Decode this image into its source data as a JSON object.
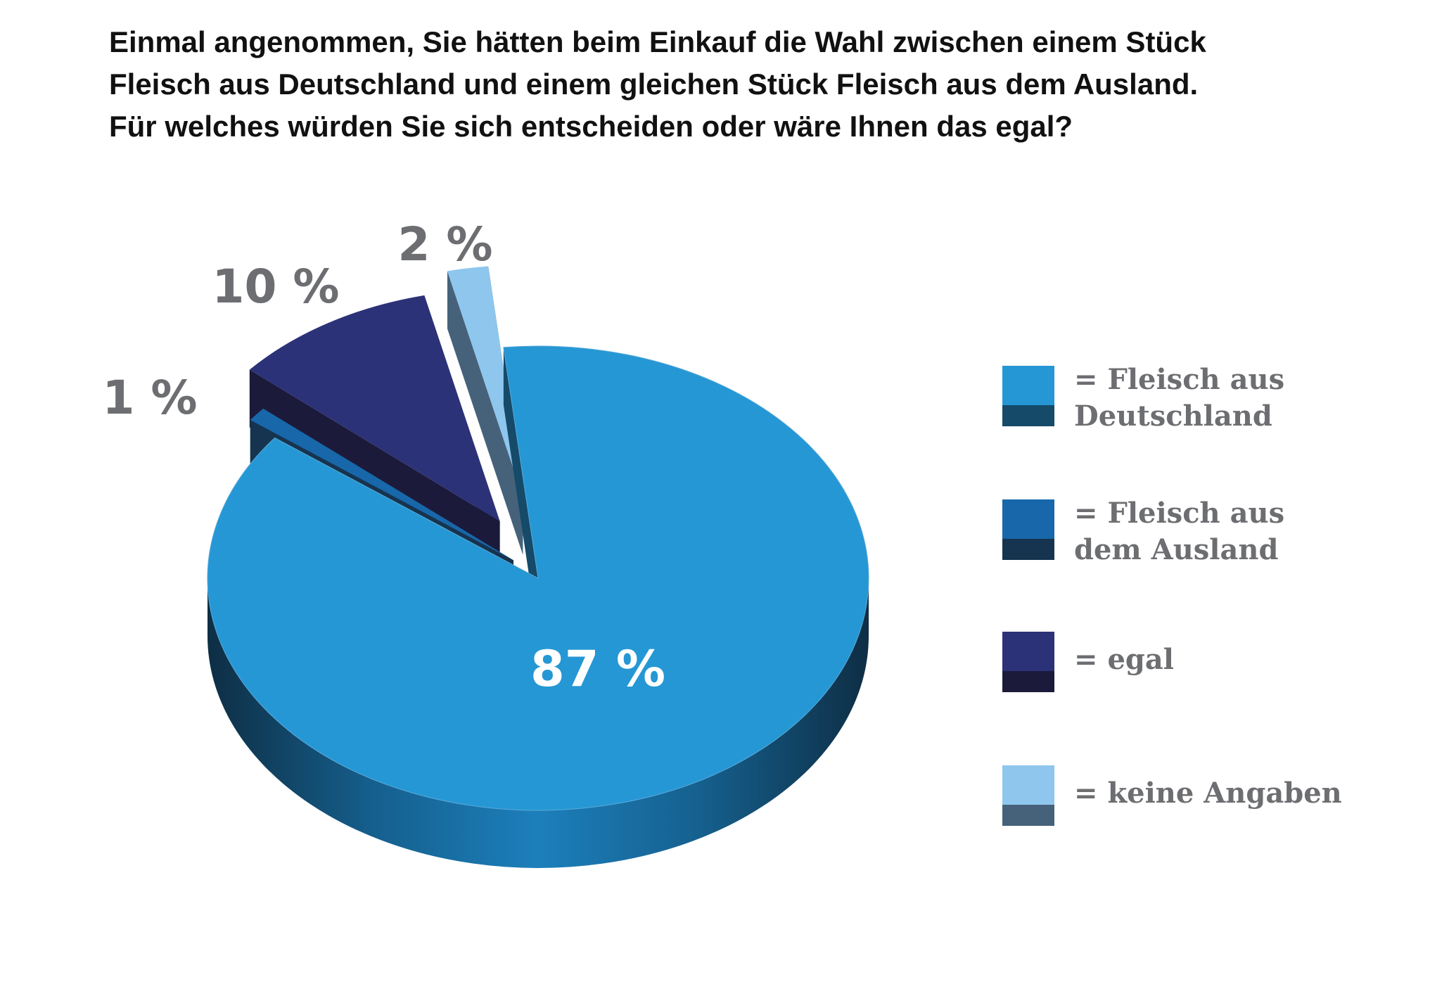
{
  "title_lines": [
    "Einmal angenommen, Sie hätten beim Einkauf die Wahl zwischen einem Stück",
    "Fleisch aus Deutschland und einem gleichen Stück Fleisch aus dem Ausland.",
    "Für welches würden Sie sich entscheiden oder wäre Ihnen das egal?"
  ],
  "legend": [
    {
      "label_line1": "= Fleisch aus",
      "label_line2": "Deutschland",
      "color": "#2597d4",
      "side_color": "#154a69"
    },
    {
      "label_line1": "= Fleisch aus",
      "label_line2": "dem Ausland",
      "color": "#1767aa",
      "side_color": "#16344f"
    },
    {
      "label_line1": "= egal",
      "label_line2": "",
      "color": "#2c3278",
      "side_color": "#1c1a3a"
    },
    {
      "label_line1": "= keine Angaben",
      "label_line2": "",
      "color": "#8ec6ee",
      "side_color": "#46627a"
    }
  ],
  "chart_data": {
    "type": "pie",
    "title": "Einmal angenommen, Sie hätten beim Einkauf die Wahl zwischen einem Stück Fleisch aus Deutschland und einem gleichen Stück Fleisch aus dem Ausland. Für welches würden Sie sich entscheiden oder wäre Ihnen das egal?",
    "unit": "%",
    "slices": [
      {
        "name": "= Fleisch aus Deutschland",
        "value": 87,
        "label": "87 %",
        "color": "#2597d4",
        "side_color": "#154a69",
        "exploded": false
      },
      {
        "name": "= Fleisch aus dem Ausland",
        "value": 1,
        "label": "1 %",
        "color": "#1767aa",
        "side_color": "#16344f",
        "exploded": true
      },
      {
        "name": "= egal",
        "value": 10,
        "label": "10 %",
        "color": "#2c3278",
        "side_color": "#1c1a3a",
        "exploded": true
      },
      {
        "name": "= keine Angaben",
        "value": 2,
        "label": "2 %",
        "color": "#8ec6ee",
        "side_color": "#46627a",
        "exploded": true
      }
    ],
    "style": "3d-tilted",
    "legend_position": "right"
  }
}
